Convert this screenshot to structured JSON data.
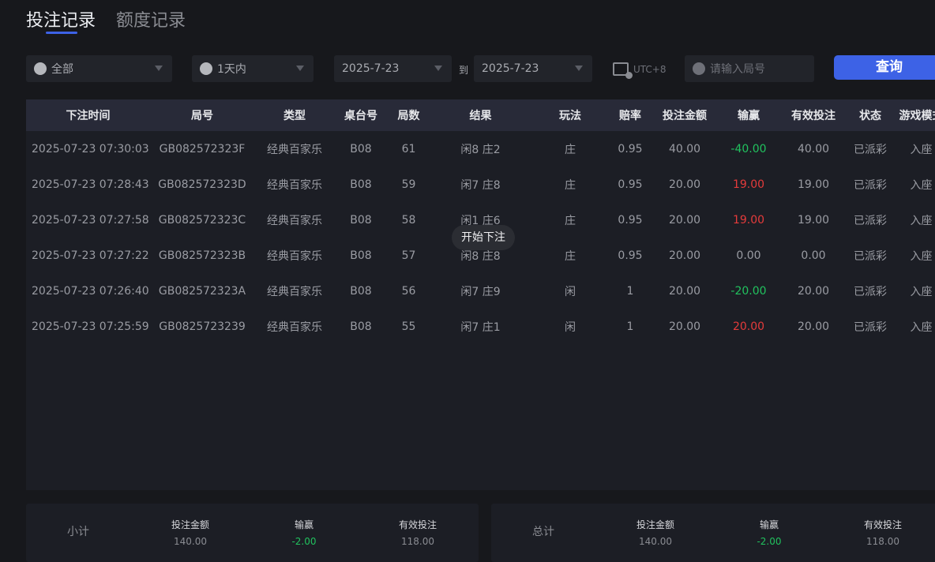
{
  "tabs": [
    {
      "label": "投注记录",
      "active": true
    },
    {
      "label": "额度记录",
      "active": false
    }
  ],
  "filters": {
    "game": "全部",
    "game_icon": "spade-icon",
    "period": "1天内",
    "period_icon": "clock-icon",
    "date_from": "2025-7-23",
    "to_label": "到",
    "date_to": "2025-7-23",
    "timezone": "UTC+8",
    "round_placeholder": "请输入局号",
    "query_label": "查询"
  },
  "table": {
    "headers": [
      "下注时间",
      "局号",
      "类型",
      "桌台号",
      "局数",
      "结果",
      "玩法",
      "赔率",
      "投注金额",
      "输赢",
      "有效投注",
      "状态",
      "游戏模式"
    ],
    "rows": [
      [
        "2025-07-23 07:30:03",
        "GB082572323F",
        "经典百家乐",
        "B08",
        "61",
        "闲8 庄2",
        "庄",
        "0.95",
        "40.00",
        "-40.00",
        "40.00",
        "已派彩",
        "入座"
      ],
      [
        "2025-07-23 07:28:43",
        "GB082572323D",
        "经典百家乐",
        "B08",
        "59",
        "闲7 庄8",
        "庄",
        "0.95",
        "20.00",
        "19.00",
        "19.00",
        "已派彩",
        "入座"
      ],
      [
        "2025-07-23 07:27:58",
        "GB082572323C",
        "经典百家乐",
        "B08",
        "58",
        "闲1 庄6",
        "庄",
        "0.95",
        "20.00",
        "19.00",
        "19.00",
        "已派彩",
        "入座"
      ],
      [
        "2025-07-23 07:27:22",
        "GB082572323B",
        "经典百家乐",
        "B08",
        "57",
        "闲8 庄8",
        "庄",
        "0.95",
        "20.00",
        "0.00",
        "0.00",
        "已派彩",
        "入座"
      ],
      [
        "2025-07-23 07:26:40",
        "GB082572323A",
        "经典百家乐",
        "B08",
        "56",
        "闲7 庄9",
        "闲",
        "1",
        "20.00",
        "-20.00",
        "20.00",
        "已派彩",
        "入座"
      ],
      [
        "2025-07-23 07:25:59",
        "GB0825723239",
        "经典百家乐",
        "B08",
        "55",
        "闲7 庄1",
        "闲",
        "1",
        "20.00",
        "20.00",
        "20.00",
        "已派彩",
        "入座"
      ]
    ]
  },
  "toast": "开始下注",
  "subtotal": {
    "label": "小计",
    "bet_label": "投注金额",
    "bet": "140.00",
    "win_label": "输赢",
    "win": "-2.00",
    "valid_label": "有效投注",
    "valid": "118.00"
  },
  "total": {
    "label": "总计",
    "bet_label": "投注金额",
    "bet": "140.00",
    "win_label": "输赢",
    "win": "-2.00",
    "valid_label": "有效投注",
    "valid": "118.00"
  },
  "colors": {
    "accent": "#3d62e6",
    "loss": "#21c25e",
    "win": "#e53b3b"
  }
}
